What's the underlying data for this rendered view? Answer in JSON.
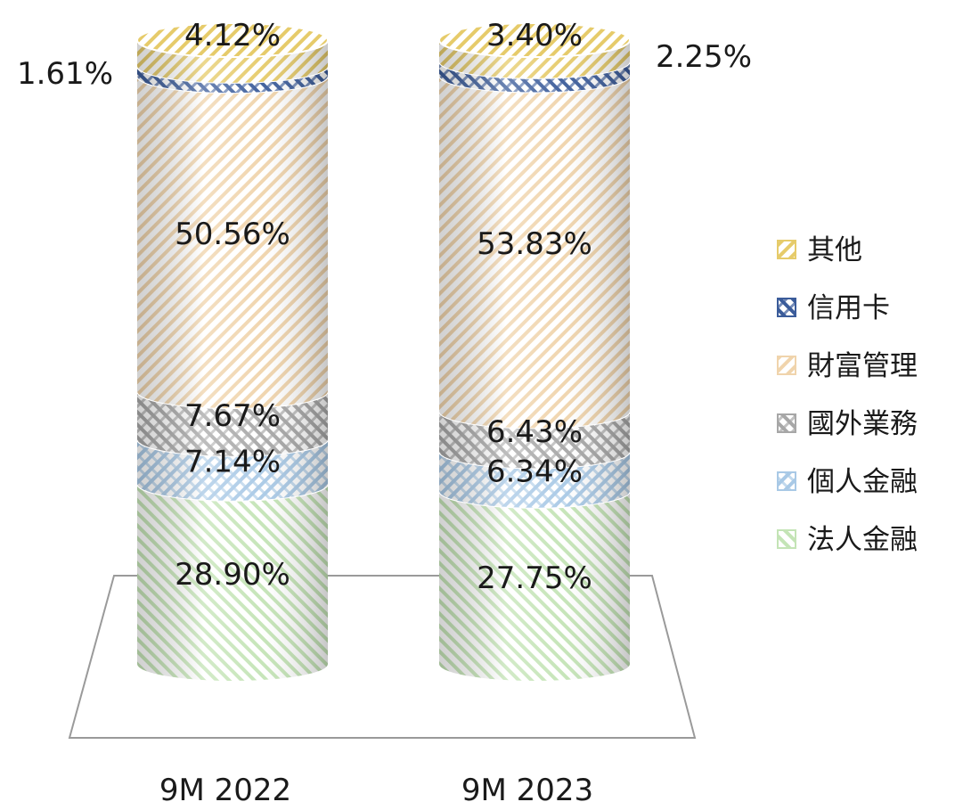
{
  "chart_data": {
    "type": "bar",
    "stacked": true,
    "style": "3d-cylinder",
    "categories": [
      "9M 2022",
      "9M 2023"
    ],
    "series": [
      {
        "name": "法人金融",
        "values": [
          28.9,
          27.75
        ],
        "labels": [
          "28.90%",
          "27.75%"
        ],
        "color": "#c4e4b6"
      },
      {
        "name": "個人金融",
        "values": [
          7.14,
          6.34
        ],
        "labels": [
          "7.14%",
          "6.34%"
        ],
        "color": "#a9c9e6"
      },
      {
        "name": "國外業務",
        "values": [
          7.67,
          6.43
        ],
        "labels": [
          "7.67%",
          "6.43%"
        ],
        "color": "#a7a7a7"
      },
      {
        "name": "財富管理",
        "values": [
          50.56,
          53.83
        ],
        "labels": [
          "50.56%",
          "53.83%"
        ],
        "color": "#f0d4ac"
      },
      {
        "name": "信用卡",
        "values": [
          1.61,
          2.25
        ],
        "labels": [
          "1.61%",
          "2.25%"
        ],
        "color": "#3b5c9a"
      },
      {
        "name": "其他",
        "values": [
          4.12,
          3.4
        ],
        "labels": [
          "4.12%",
          "3.40%"
        ],
        "color": "#e6cb6a"
      }
    ],
    "legend_order": [
      "其他",
      "信用卡",
      "財富管理",
      "國外業務",
      "個人金融",
      "法人金融"
    ],
    "legend_position": "right",
    "ylim": [
      0,
      100
    ]
  }
}
